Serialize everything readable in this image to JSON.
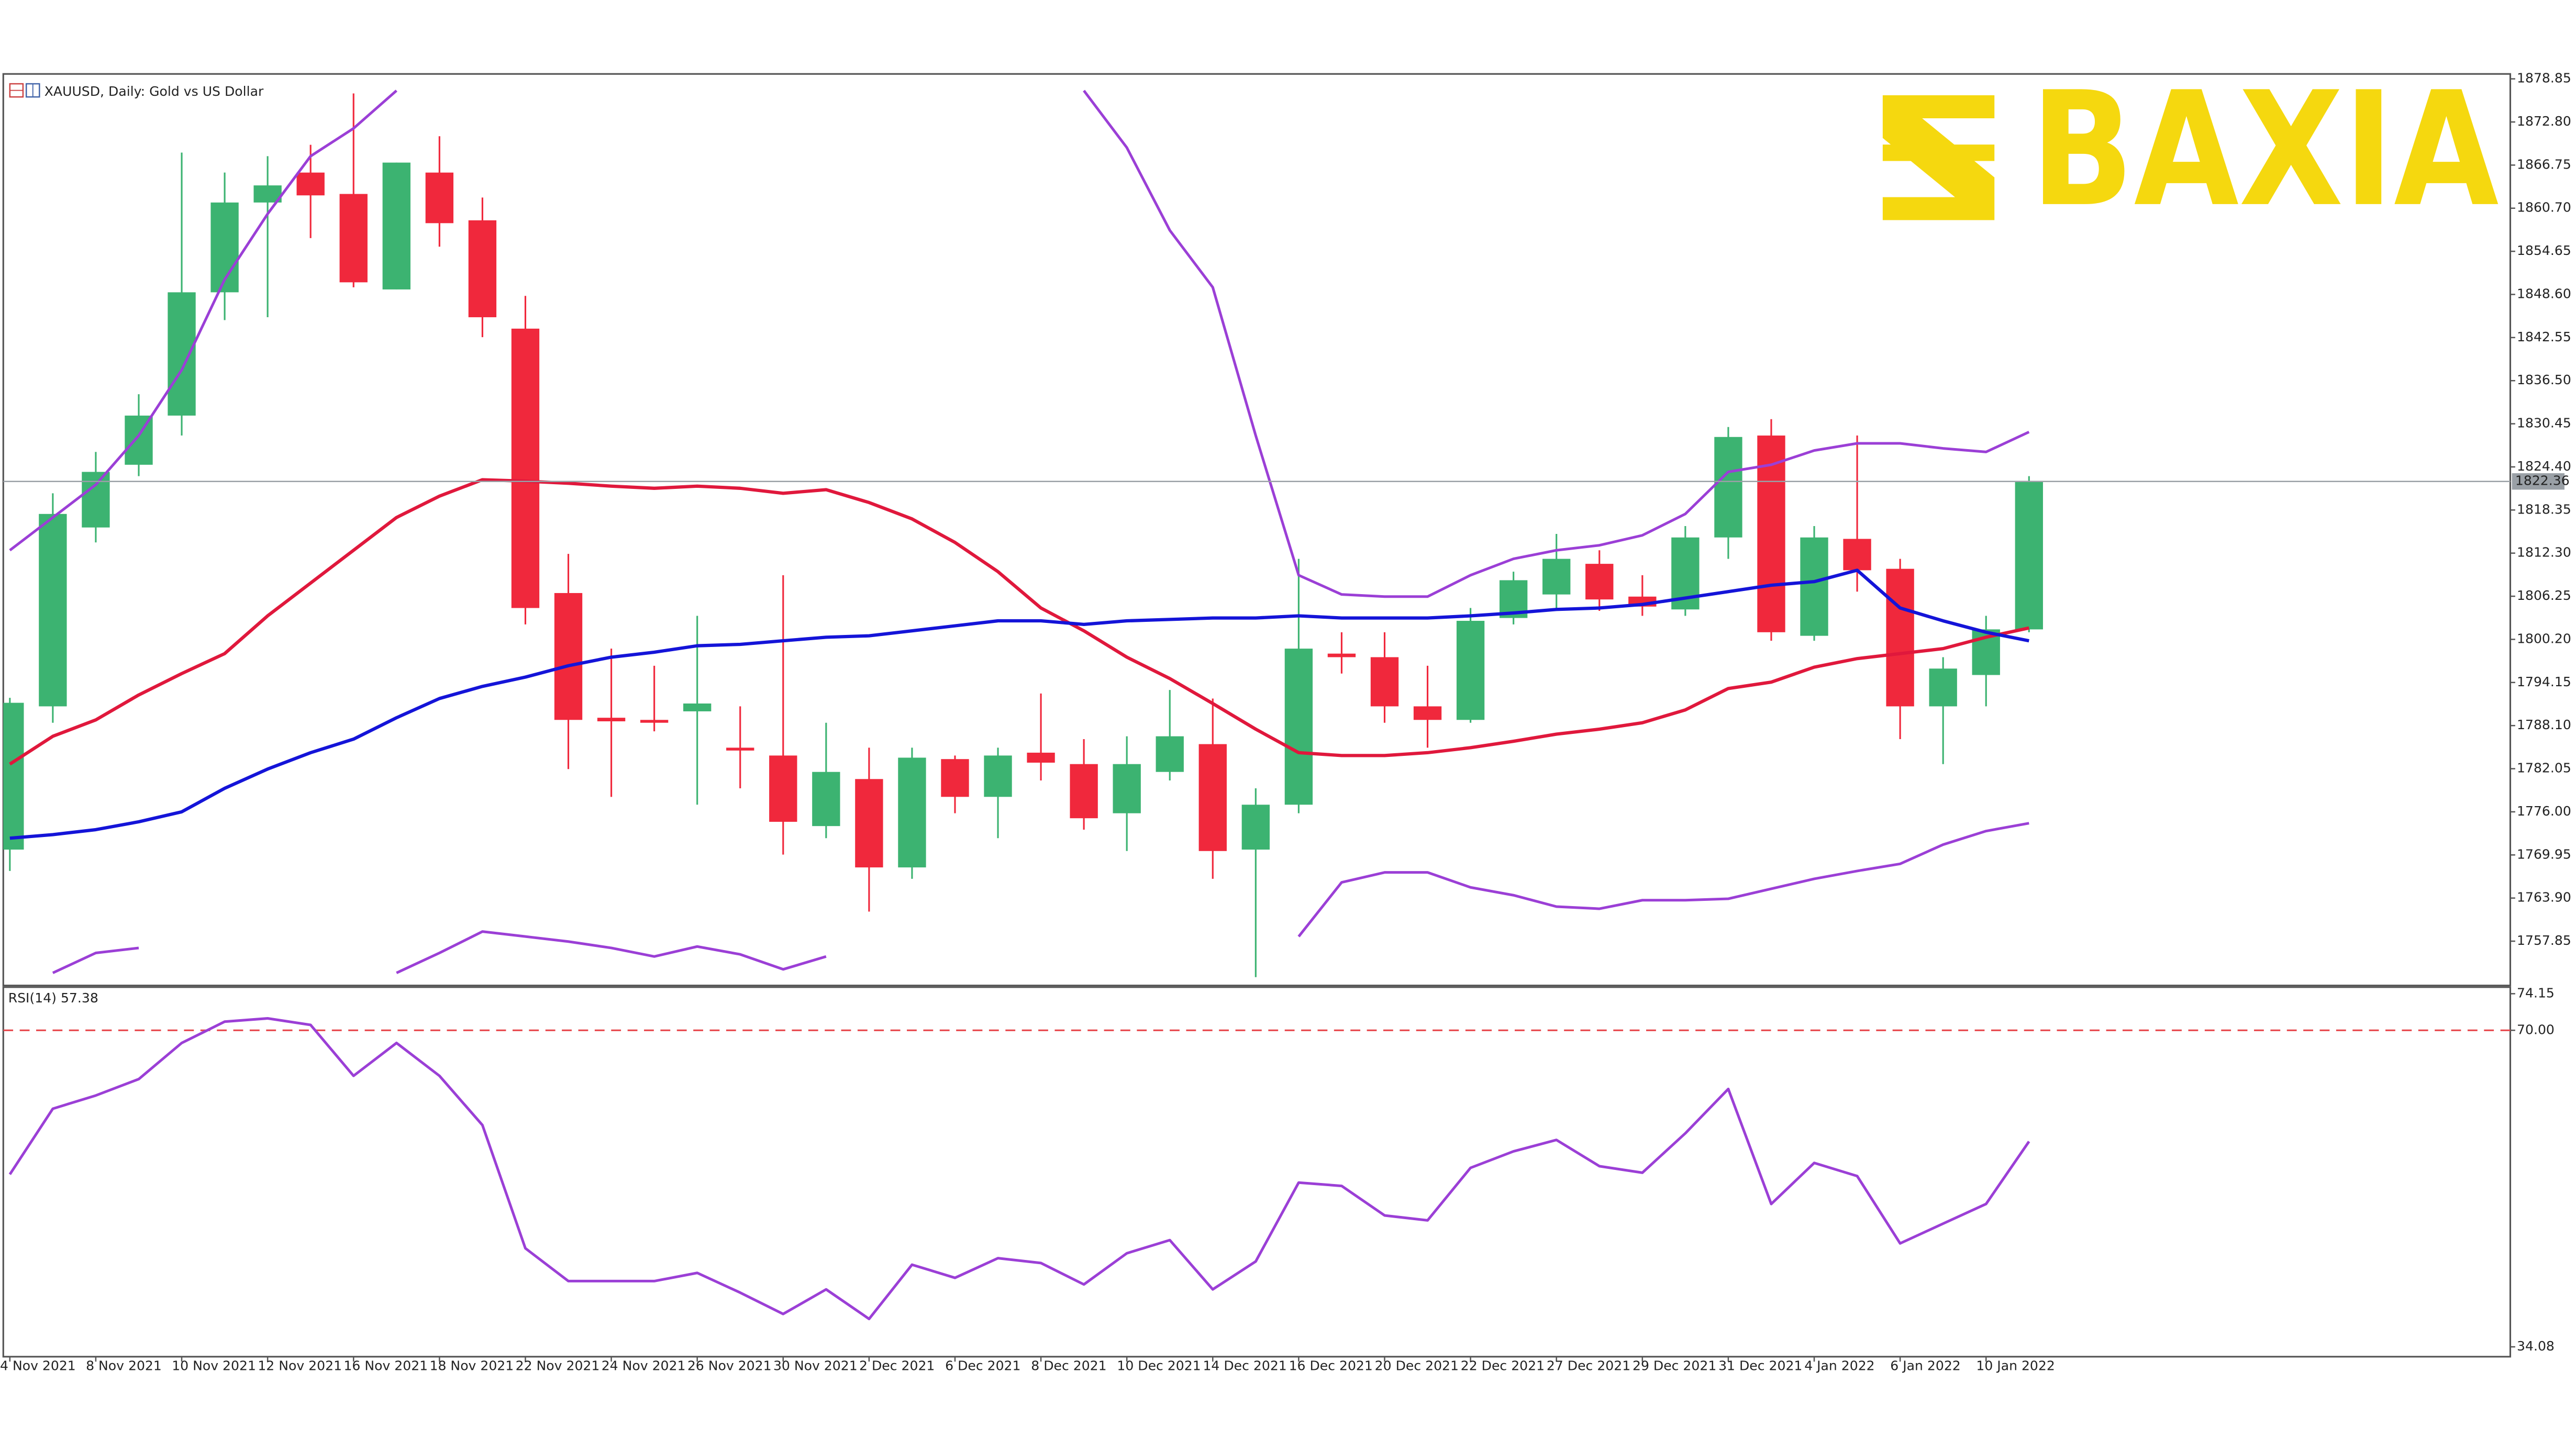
{
  "logo": {
    "text": "BAXIA"
  },
  "chart_data": [
    {
      "type": "candlestick",
      "title": "XAUUSD, Daily:  Gold vs US Dollar",
      "categories": [
        "4 Nov 2021",
        null,
        "8 Nov 2021",
        null,
        "10 Nov 2021",
        null,
        "12 Nov 2021",
        null,
        "16 Nov 2021",
        null,
        "18 Nov 2021",
        null,
        "22 Nov 2021",
        null,
        "24 Nov 2021",
        null,
        "26 Nov 2021",
        null,
        "30 Nov 2021",
        null,
        "2 Dec 2021",
        null,
        "6 Dec 2021",
        null,
        "8 Dec 2021",
        null,
        "10 Dec 2021",
        null,
        "14 Dec 2021",
        null,
        "16 Dec 2021",
        null,
        "20 Dec 2021",
        null,
        "22 Dec 2021",
        null,
        "27 Dec 2021",
        null,
        "29 Dec 2021",
        null,
        "31 Dec 2021",
        null,
        "4 Jan 2022",
        null,
        "6 Jan 2022",
        null,
        "10 Jan 2022",
        null
      ],
      "open": [
        1770.7,
        1790.8,
        1815.9,
        1824.7,
        1831.6,
        1848.9,
        1861.5,
        1865.7,
        1862.7,
        1849.3,
        1865.7,
        1859.0,
        1843.8,
        1806.7,
        1789.2,
        1788.9,
        1790.1,
        1785.0,
        1783.9,
        1774.0,
        1780.6,
        1768.2,
        1783.4,
        1778.1,
        1784.3,
        1782.7,
        1775.8,
        1781.6,
        1785.5,
        1770.7,
        1777.0,
        1798.2,
        1797.7,
        1790.8,
        1788.9,
        1803.2,
        1806.5,
        1810.8,
        1806.2,
        1804.4,
        1814.5,
        1828.8,
        1800.7,
        1814.3,
        1810.1,
        1790.8,
        1795.2,
        1801.6
      ],
      "high": [
        1792.0,
        1820.7,
        1826.5,
        1834.6,
        1868.5,
        1865.7,
        1868.0,
        1869.6,
        1876.8,
        1867.1,
        1870.8,
        1862.2,
        1848.4,
        1812.2,
        1798.9,
        1796.5,
        1803.5,
        1790.8,
        1809.2,
        1788.5,
        1785.0,
        1785.0,
        1783.9,
        1785.0,
        1792.6,
        1786.2,
        1786.6,
        1793.1,
        1791.9,
        1779.3,
        1811.5,
        1801.2,
        1801.2,
        1796.5,
        1804.6,
        1809.7,
        1815.0,
        1812.7,
        1809.2,
        1816.1,
        1830.0,
        1831.1,
        1816.1,
        1828.8,
        1811.5,
        1797.7,
        1803.5,
        1823.1
      ],
      "low": [
        1767.7,
        1788.5,
        1813.8,
        1823.1,
        1828.8,
        1845.0,
        1845.4,
        1856.5,
        1849.6,
        1849.3,
        1855.3,
        1842.6,
        1802.3,
        1782.0,
        1778.1,
        1787.3,
        1777.0,
        1779.3,
        1770.0,
        1772.3,
        1762.0,
        1766.6,
        1775.8,
        1772.3,
        1780.4,
        1773.5,
        1770.5,
        1780.4,
        1766.6,
        1752.8,
        1775.8,
        1795.4,
        1788.5,
        1785.0,
        1788.5,
        1802.3,
        1804.6,
        1804.2,
        1803.5,
        1803.5,
        1811.5,
        1800.0,
        1800.0,
        1806.9,
        1786.2,
        1782.7,
        1790.8,
        1801.2
      ],
      "close": [
        1791.3,
        1817.8,
        1823.7,
        1831.6,
        1848.9,
        1861.5,
        1863.9,
        1862.5,
        1850.3,
        1867.1,
        1858.6,
        1845.4,
        1804.6,
        1788.9,
        1788.7,
        1788.5,
        1791.2,
        1784.6,
        1774.6,
        1781.6,
        1768.2,
        1783.6,
        1778.1,
        1783.9,
        1782.9,
        1775.1,
        1782.7,
        1786.6,
        1770.5,
        1777.0,
        1798.9,
        1797.7,
        1790.8,
        1788.9,
        1802.8,
        1808.5,
        1811.5,
        1805.8,
        1804.8,
        1814.5,
        1828.6,
        1801.2,
        1814.5,
        1809.9,
        1790.8,
        1796.1,
        1801.6,
        1822.36
      ],
      "up_color": "#3cb371",
      "down_color": "#f0283c",
      "series": [
        {
          "color": "#e0183c",
          "values": [
            1782.7,
            1786.6,
            1788.9,
            1792.4,
            1795.4,
            1798.2,
            1803.5,
            1808.1,
            1812.7,
            1817.3,
            1820.3,
            1822.6,
            1822.4,
            1822.1,
            1821.7,
            1821.4,
            1821.7,
            1821.4,
            1820.7,
            1821.2,
            1819.4,
            1817.1,
            1813.8,
            1809.7,
            1804.6,
            1801.4,
            1797.7,
            1794.7,
            1791.2,
            1787.6,
            1784.3,
            1783.9,
            1783.9,
            1784.3,
            1785.0,
            1785.9,
            1786.9,
            1787.6,
            1788.5,
            1790.3,
            1793.3,
            1794.2,
            1796.3,
            1797.5,
            1798.2,
            1798.9,
            1800.5,
            1801.8
          ]
        },
        {
          "color": "#1414d8",
          "values": [
            1772.3,
            1772.8,
            1773.5,
            1774.6,
            1776.0,
            1779.3,
            1782.0,
            1784.3,
            1786.2,
            1789.2,
            1791.9,
            1793.6,
            1794.9,
            1796.5,
            1797.7,
            1798.4,
            1799.3,
            1799.5,
            1800.0,
            1800.5,
            1800.7,
            1801.4,
            1802.1,
            1802.8,
            1802.8,
            1802.3,
            1802.8,
            1803.0,
            1803.2,
            1803.2,
            1803.5,
            1803.2,
            1803.2,
            1803.2,
            1803.5,
            1803.9,
            1804.4,
            1804.6,
            1805.1,
            1806.0,
            1806.9,
            1807.8,
            1808.3,
            1809.9,
            1804.6,
            1802.8,
            1801.2,
            1800.0
          ]
        },
        {
          "color": "#9b3fd6",
          "values": [
            1812.7,
            1817.3,
            1821.9,
            1828.8,
            1838.0,
            1850.7,
            1859.9,
            1868.0,
            1871.9,
            1877.2,
            null,
            null,
            null,
            null,
            null,
            null,
            null,
            null,
            null,
            null,
            null,
            null,
            null,
            null,
            null,
            1877.2,
            1869.2,
            1857.6,
            1849.6,
            1828.8,
            1809.2,
            1806.5,
            1806.2,
            1806.2,
            1809.2,
            1811.5,
            1812.7,
            1813.4,
            1814.8,
            1817.8,
            1823.7,
            1824.7,
            1826.7,
            1827.7,
            1827.7,
            1827.0,
            1826.5,
            1829.3
          ]
        },
        {
          "color": "#9b3fd6",
          "values": [
            null,
            1753.4,
            1756.2,
            1756.9,
            null,
            null,
            null,
            null,
            null,
            1753.4,
            1756.2,
            1759.2,
            1758.5,
            1757.8,
            1756.9,
            1755.7,
            1757.1,
            1756.0,
            1753.9,
            1755.7,
            null,
            null,
            null,
            null,
            null,
            null,
            null,
            null,
            null,
            null,
            1758.5,
            1766.1,
            1767.5,
            1767.5,
            1765.4,
            1764.3,
            1762.7,
            1762.4,
            1763.6,
            1763.6,
            1763.8,
            1765.2,
            1766.6,
            1767.7,
            1768.7,
            1771.4,
            1773.3,
            1774.4
          ]
        }
      ],
      "current_price": 1822.36,
      "ylim": [
        1751.63,
        1879.54
      ],
      "yticks": [
        1878.85,
        {
          "value": 1872.8,
          "label": "1872.80"
        },
        1866.75,
        {
          "value": 1860.7,
          "label": "1860.70"
        },
        1854.65,
        {
          "value": 1848.6,
          "label": "1848.60"
        },
        1842.55,
        {
          "value": 1836.5,
          "label": "1836.50"
        },
        1830.45,
        {
          "value": 1824.4,
          "label": "1824.40"
        },
        1818.35,
        {
          "value": 1812.3,
          "label": "1812.30"
        },
        1806.25,
        {
          "value": 1800.2,
          "label": "1800.20"
        },
        1794.15,
        {
          "value": 1788.1,
          "label": "1788.10"
        },
        1782.05,
        {
          "value": 1776,
          "label": "1776.00"
        },
        1769.95,
        {
          "value": 1763.9,
          "label": "1763.90"
        },
        1757.85
      ],
      "grid": false
    },
    {
      "type": "line",
      "title": "RSI(14) 57.38",
      "series": [
        {
          "color": "#9b3fd6",
          "values": [
            53.65,
            61.1,
            62.6,
            64.46,
            68.56,
            70.98,
            71.35,
            70.61,
            64.83,
            68.56,
            64.83,
            59.24,
            45.26,
            41.54,
            41.54,
            41.54,
            42.47,
            40.23,
            37.81,
            40.6,
            37.25,
            43.4,
            41.91,
            44.14,
            43.59,
            41.16,
            44.7,
            46.19,
            40.6,
            43.77,
            52.72,
            52.34,
            48.99,
            48.43,
            54.39,
            56.26,
            57.56,
            54.58,
            53.84,
            58.31,
            63.34,
            50.29,
            54.95,
            53.46,
            45.82,
            48.06,
            50.29,
            57.38
          ]
        }
      ],
      "ylim": [
        34.08,
        74.15
      ],
      "yticks": [
        74.15,
        {
          "value": 70,
          "label": "70.00"
        },
        34.08
      ],
      "level_color": "#e8484c",
      "grid": false
    }
  ]
}
